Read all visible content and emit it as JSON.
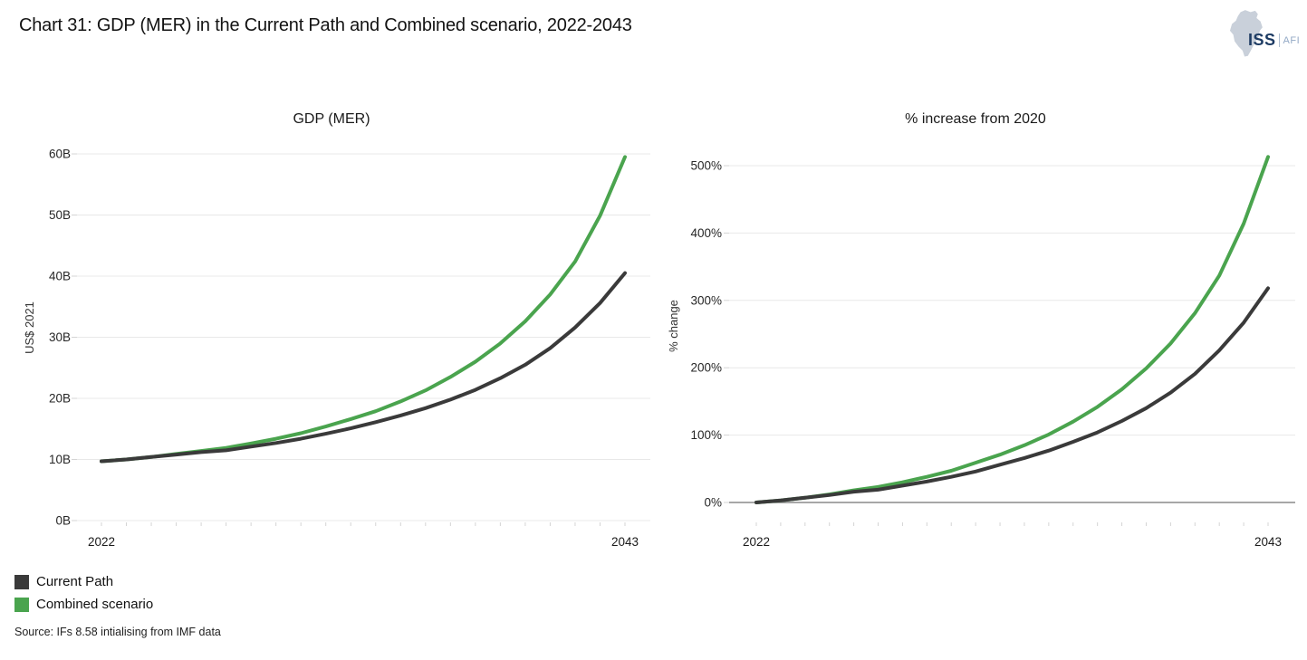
{
  "header": {
    "title": "Chart 31: GDP (MER) in the Current Path and Combined scenario, 2022-2043"
  },
  "logo": {
    "primary": "ISS",
    "secondary": "AFI"
  },
  "colors": {
    "current_path": "#3a3a3a",
    "combined": "#4aa44e",
    "gridline": "#e8e8e8",
    "zero_axis": "#8a8a8a",
    "x_tick": "#d4d4d4"
  },
  "chart_data": [
    {
      "type": "line",
      "title": "GDP (MER)",
      "xlabel": "",
      "ylabel": "US$ 2021",
      "x": [
        2022,
        2023,
        2024,
        2025,
        2026,
        2027,
        2028,
        2029,
        2030,
        2031,
        2032,
        2033,
        2034,
        2035,
        2036,
        2037,
        2038,
        2039,
        2040,
        2041,
        2042,
        2043
      ],
      "x_axis_labels": [
        "2022",
        "2043"
      ],
      "ylim": [
        0,
        60
      ],
      "yticks": [
        0,
        10,
        20,
        30,
        40,
        50,
        60
      ],
      "ytick_labels": [
        "0B",
        "10B",
        "20B",
        "30B",
        "40B",
        "50B",
        "60B"
      ],
      "grid": true,
      "zero_axis": false,
      "legend_position": "below-left",
      "series": [
        {
          "name": "Current Path",
          "color": "#3a3a3a",
          "values": [
            9.7,
            10.0,
            10.4,
            10.8,
            11.2,
            11.5,
            12.1,
            12.7,
            13.4,
            14.2,
            15.1,
            16.1,
            17.2,
            18.4,
            19.8,
            21.4,
            23.3,
            25.5,
            28.2,
            31.6,
            35.6,
            40.5
          ]
        },
        {
          "name": "Combined scenario",
          "color": "#4aa44e",
          "values": [
            9.7,
            10.0,
            10.4,
            10.9,
            11.4,
            11.9,
            12.6,
            13.4,
            14.3,
            15.4,
            16.6,
            17.9,
            19.5,
            21.3,
            23.5,
            26.0,
            29.0,
            32.6,
            37.0,
            42.4,
            49.9,
            59.5
          ]
        }
      ]
    },
    {
      "type": "line",
      "title": "% increase from 2020",
      "xlabel": "",
      "ylabel": "% change",
      "x": [
        2022,
        2023,
        2024,
        2025,
        2026,
        2027,
        2028,
        2029,
        2030,
        2031,
        2032,
        2033,
        2034,
        2035,
        2036,
        2037,
        2038,
        2039,
        2040,
        2041,
        2042,
        2043
      ],
      "x_axis_labels": [
        "2022",
        "2043"
      ],
      "ylim": [
        0,
        500
      ],
      "yticks": [
        0,
        100,
        200,
        300,
        400,
        500
      ],
      "ytick_labels": [
        "0%",
        "100%",
        "200%",
        "300%",
        "400%",
        "500%"
      ],
      "grid": true,
      "zero_axis": true,
      "legend_position": "none",
      "series": [
        {
          "name": "Current Path",
          "color": "#3a3a3a",
          "values": [
            0,
            3,
            7,
            11,
            16,
            19,
            25,
            31,
            38,
            46,
            56,
            66,
            77,
            90,
            104,
            121,
            140,
            163,
            191,
            226,
            267,
            318
          ]
        },
        {
          "name": "Combined scenario",
          "color": "#4aa44e",
          "values": [
            0,
            3,
            7,
            12,
            18,
            23,
            30,
            38,
            47,
            59,
            71,
            85,
            101,
            120,
            142,
            168,
            199,
            236,
            281,
            337,
            414,
            513
          ]
        }
      ]
    }
  ],
  "legend": {
    "items": [
      {
        "label": "Current Path",
        "color": "#3a3a3a"
      },
      {
        "label": "Combined scenario",
        "color": "#4aa44e"
      }
    ]
  },
  "source": "Source: IFs 8.58 intialising from IMF data"
}
